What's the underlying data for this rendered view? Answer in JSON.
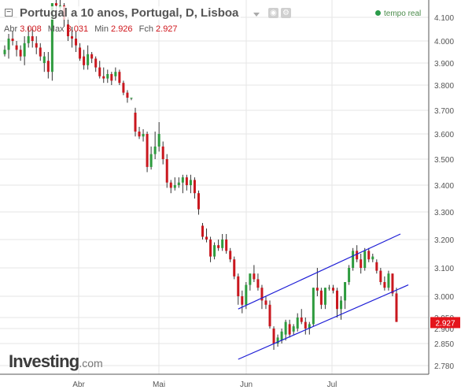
{
  "header": {
    "collapse_symbol": "−",
    "title": "Portugal a 10 anos, Portugal, D, Lisboa",
    "realtime_label": "tempo real",
    "ohlc": [
      {
        "label": "Abr",
        "value": "3.008"
      },
      {
        "label": "Max",
        "value": "3.031"
      },
      {
        "label": "Min",
        "value": "2.926"
      },
      {
        "label": "Fch",
        "value": "2.927"
      }
    ]
  },
  "logo": {
    "brand": "Investing",
    "suffix": ".com"
  },
  "colors": {
    "up": "#2e9b3e",
    "down": "#c9171e",
    "grid": "#e6e6e6",
    "channel": "#1e1ed6",
    "price_tag": "#e4141b"
  },
  "chart_data": {
    "type": "candlestick",
    "ylim": [
      2.75,
      4.15
    ],
    "y_ticks": [
      "4.100",
      "4.000",
      "3.900",
      "3.800",
      "3.700",
      "3.600",
      "3.500",
      "3.400",
      "3.300",
      "3.200",
      "3.100",
      "3.000",
      "2.950",
      "2.900",
      "2.850",
      "2.780"
    ],
    "x_ticks": [
      "Abr",
      "Mai",
      "Jun",
      "Jul"
    ],
    "last_price": "2.927",
    "candles": [
      [
        3.94,
        3.98,
        3.93,
        3.96
      ],
      [
        3.96,
        4.03,
        3.92,
        4.01
      ],
      [
        4.01,
        4.04,
        3.98,
        4.0
      ],
      [
        3.98,
        4.0,
        3.93,
        3.96
      ],
      [
        3.96,
        3.98,
        3.91,
        3.93
      ],
      [
        3.93,
        4.02,
        3.89,
        3.99
      ],
      [
        3.99,
        4.06,
        3.97,
        4.02
      ],
      [
        4.02,
        4.05,
        3.97,
        4.0
      ],
      [
        3.99,
        4.02,
        3.94,
        3.97
      ],
      [
        3.97,
        3.99,
        3.91,
        3.93
      ],
      [
        3.9,
        3.95,
        3.86,
        3.93
      ],
      [
        3.91,
        3.95,
        3.83,
        3.86
      ],
      [
        3.86,
        4.16,
        3.82,
        4.16
      ],
      [
        4.16,
        4.18,
        4.1,
        4.15
      ],
      [
        4.14,
        4.18,
        4.11,
        4.15
      ],
      [
        4.15,
        4.16,
        4.06,
        4.09
      ],
      [
        4.07,
        4.1,
        4.0,
        4.02
      ],
      [
        4.02,
        4.06,
        3.97,
        4.01
      ],
      [
        4.01,
        4.04,
        3.95,
        3.98
      ],
      [
        3.97,
        3.99,
        3.91,
        3.92
      ],
      [
        3.93,
        3.96,
        3.87,
        3.89
      ],
      [
        3.89,
        3.98,
        3.87,
        3.94
      ],
      [
        3.94,
        3.95,
        3.9,
        3.92
      ],
      [
        3.92,
        3.93,
        3.86,
        3.88
      ],
      [
        3.88,
        3.91,
        3.83,
        3.84
      ],
      [
        3.84,
        3.88,
        3.81,
        3.83
      ],
      [
        3.83,
        3.87,
        3.81,
        3.85
      ],
      [
        3.85,
        3.86,
        3.8,
        3.82
      ],
      [
        3.84,
        3.88,
        3.82,
        3.86
      ],
      [
        3.86,
        3.87,
        3.8,
        3.81
      ],
      [
        3.81,
        3.82,
        3.76,
        3.77
      ],
      [
        3.77,
        3.78,
        3.73,
        3.75
      ],
      [
        3.75,
        3.75,
        3.74,
        3.75
      ],
      [
        3.69,
        3.71,
        3.59,
        3.61
      ],
      [
        3.61,
        3.63,
        3.58,
        3.59
      ],
      [
        3.59,
        3.62,
        3.57,
        3.6
      ],
      [
        3.6,
        3.61,
        3.45,
        3.47
      ],
      [
        3.47,
        3.55,
        3.46,
        3.52
      ],
      [
        3.52,
        3.61,
        3.5,
        3.55
      ],
      [
        3.55,
        3.65,
        3.53,
        3.6
      ],
      [
        3.55,
        3.57,
        3.48,
        3.5
      ],
      [
        3.5,
        3.52,
        3.39,
        3.41
      ],
      [
        3.41,
        3.42,
        3.37,
        3.39
      ],
      [
        3.39,
        3.43,
        3.38,
        3.4
      ],
      [
        3.4,
        3.43,
        3.39,
        3.41
      ],
      [
        3.41,
        3.44,
        3.37,
        3.43
      ],
      [
        3.43,
        3.44,
        3.38,
        3.4
      ],
      [
        3.4,
        3.44,
        3.37,
        3.42
      ],
      [
        3.42,
        3.43,
        3.35,
        3.37
      ],
      [
        3.37,
        3.38,
        3.29,
        3.31
      ],
      [
        3.25,
        3.26,
        3.2,
        3.21
      ],
      [
        3.21,
        3.24,
        3.19,
        3.2
      ],
      [
        3.2,
        3.21,
        3.12,
        3.14
      ],
      [
        3.14,
        3.19,
        3.13,
        3.18
      ],
      [
        3.18,
        3.2,
        3.16,
        3.17
      ],
      [
        3.17,
        3.22,
        3.16,
        3.2
      ],
      [
        3.2,
        3.22,
        3.15,
        3.16
      ],
      [
        3.16,
        3.17,
        3.12,
        3.13
      ],
      [
        3.13,
        3.14,
        3.06,
        3.07
      ],
      [
        3.07,
        3.08,
        2.98,
        3.0
      ],
      [
        3.0,
        3.02,
        2.96,
        2.98
      ],
      [
        2.98,
        3.05,
        2.97,
        3.04
      ],
      [
        3.04,
        3.08,
        3.02,
        3.08
      ],
      [
        3.08,
        3.11,
        3.05,
        3.06
      ],
      [
        3.06,
        3.08,
        3.02,
        3.03
      ],
      [
        3.03,
        3.04,
        2.97,
        2.99
      ],
      [
        2.99,
        3.0,
        2.97,
        2.98
      ],
      [
        2.98,
        2.99,
        2.9,
        2.91
      ],
      [
        2.9,
        2.91,
        2.83,
        2.85
      ],
      [
        2.85,
        2.88,
        2.84,
        2.87
      ],
      [
        2.86,
        2.9,
        2.85,
        2.89
      ],
      [
        2.88,
        2.94,
        2.86,
        2.93
      ],
      [
        2.92,
        2.94,
        2.87,
        2.88
      ],
      [
        2.89,
        2.92,
        2.88,
        2.91
      ],
      [
        2.9,
        2.96,
        2.89,
        2.95
      ],
      [
        2.95,
        2.97,
        2.92,
        2.93
      ],
      [
        2.93,
        2.95,
        2.88,
        2.9
      ],
      [
        2.9,
        2.93,
        2.88,
        2.92
      ],
      [
        2.92,
        3.03,
        2.91,
        3.03
      ],
      [
        3.03,
        3.1,
        3.0,
        3.02
      ],
      [
        3.02,
        3.03,
        2.97,
        2.98
      ],
      [
        2.98,
        3.03,
        2.97,
        3.03
      ],
      [
        3.03,
        3.04,
        3.02,
        3.03
      ],
      [
        3.03,
        3.04,
        3.01,
        3.02
      ],
      [
        3.02,
        3.03,
        2.95,
        2.97
      ],
      [
        2.97,
        3.0,
        2.94,
        2.99
      ],
      [
        2.99,
        3.05,
        2.97,
        3.05
      ],
      [
        3.05,
        3.11,
        3.04,
        3.1
      ],
      [
        3.1,
        3.17,
        3.09,
        3.16
      ],
      [
        3.16,
        3.18,
        3.12,
        3.13
      ],
      [
        3.13,
        3.15,
        3.08,
        3.1
      ],
      [
        3.1,
        3.17,
        3.09,
        3.16
      ],
      [
        3.16,
        3.17,
        3.12,
        3.13
      ],
      [
        3.13,
        3.15,
        3.12,
        3.14
      ],
      [
        3.12,
        3.13,
        3.08,
        3.09
      ],
      [
        3.09,
        3.1,
        3.04,
        3.05
      ],
      [
        3.05,
        3.07,
        3.02,
        3.03
      ],
      [
        3.03,
        3.09,
        3.02,
        3.08
      ],
      [
        3.08,
        3.08,
        3.0,
        3.01
      ],
      [
        3.01,
        3.03,
        2.93,
        2.93
      ]
    ],
    "channel": {
      "upper": [
        [
          59,
          2.97
        ],
        [
          100,
          3.22
        ]
      ],
      "lower": [
        [
          59,
          2.8
        ],
        [
          102,
          3.04
        ]
      ]
    }
  }
}
